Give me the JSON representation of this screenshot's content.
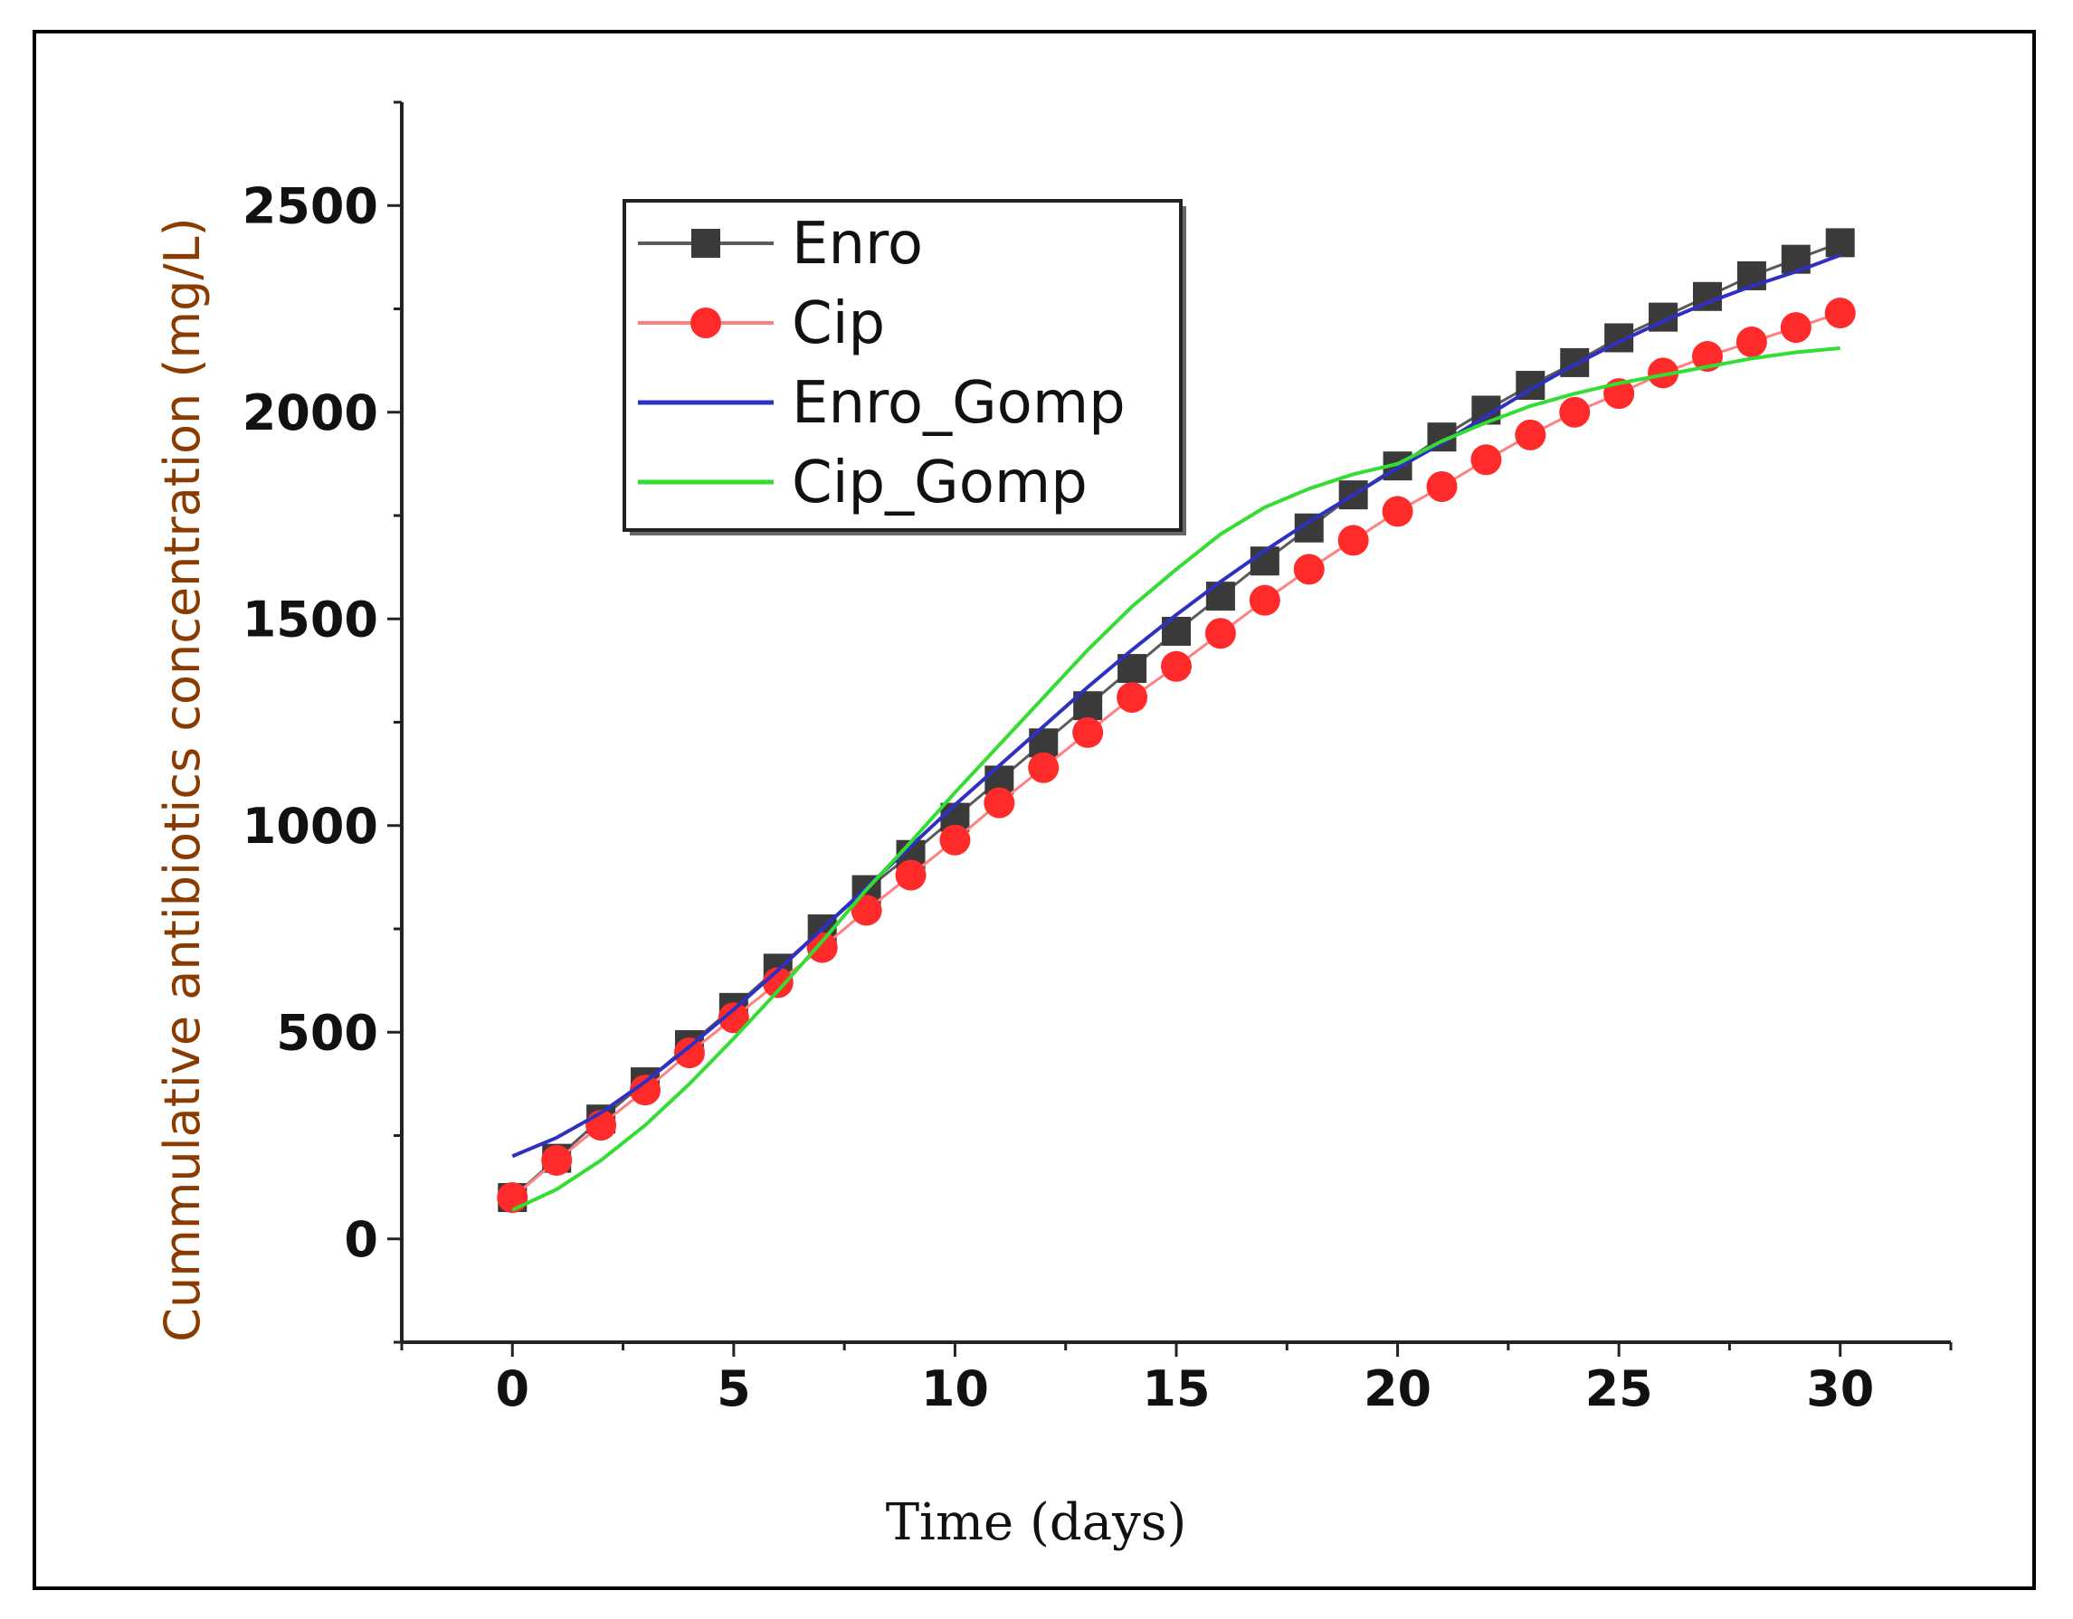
{
  "chart_data": {
    "type": "line",
    "title": "",
    "xlabel": "Time (days)",
    "ylabel": "Cummulative antibiotics concentration (mg/L)",
    "xlim": [
      -2.5,
      32.5
    ],
    "ylim": [
      -250,
      2750
    ],
    "x_ticks": [
      0,
      5,
      10,
      15,
      20,
      25,
      30
    ],
    "y_ticks": [
      0,
      500,
      1000,
      1500,
      2000,
      2500
    ],
    "x_tick_labels": [
      "0",
      "5",
      "10",
      "15",
      "20",
      "25",
      "30"
    ],
    "y_tick_labels": [
      "0",
      "500",
      "1000",
      "1500",
      "2000",
      "2500"
    ],
    "legend_position": "top-left",
    "series": [
      {
        "name": "Enro",
        "marker": "square",
        "color": "#3a3a3a",
        "line_color": "#5a5a5a",
        "x": [
          0,
          1,
          2,
          3,
          4,
          5,
          6,
          7,
          8,
          9,
          10,
          11,
          12,
          13,
          14,
          15,
          16,
          17,
          18,
          19,
          20,
          21,
          22,
          23,
          24,
          25,
          26,
          27,
          28,
          29,
          30
        ],
        "values": [
          100,
          195,
          290,
          380,
          470,
          560,
          655,
          750,
          845,
          930,
          1020,
          1110,
          1200,
          1290,
          1380,
          1470,
          1555,
          1640,
          1720,
          1800,
          1870,
          1940,
          2005,
          2065,
          2120,
          2180,
          2230,
          2280,
          2330,
          2370,
          2410
        ]
      },
      {
        "name": "Cip",
        "marker": "circle",
        "color": "#ff2a2a",
        "line_color": "#ff8080",
        "x": [
          0,
          1,
          2,
          3,
          4,
          5,
          6,
          7,
          8,
          9,
          10,
          11,
          12,
          13,
          14,
          15,
          16,
          17,
          18,
          19,
          20,
          21,
          22,
          23,
          24,
          25,
          26,
          27,
          28,
          29,
          30
        ],
        "values": [
          100,
          190,
          275,
          360,
          450,
          535,
          620,
          705,
          795,
          880,
          965,
          1055,
          1140,
          1225,
          1310,
          1385,
          1465,
          1545,
          1620,
          1690,
          1760,
          1820,
          1885,
          1945,
          2000,
          2045,
          2095,
          2135,
          2170,
          2205,
          2240
        ]
      },
      {
        "name": "Enro_Gomp",
        "marker": "none",
        "color": "#3030c0",
        "x": [
          0,
          1,
          2,
          3,
          4,
          5,
          6,
          7,
          8,
          9,
          10,
          11,
          12,
          13,
          14,
          15,
          16,
          17,
          18,
          19,
          20,
          21,
          22,
          23,
          24,
          25,
          26,
          27,
          28,
          29,
          30
        ],
        "values": [
          200,
          245,
          305,
          380,
          465,
          555,
          650,
          750,
          850,
          950,
          1050,
          1145,
          1240,
          1335,
          1425,
          1510,
          1590,
          1665,
          1735,
          1800,
          1865,
          1925,
          1990,
          2055,
          2115,
          2170,
          2220,
          2265,
          2305,
          2340,
          2380
        ]
      },
      {
        "name": "Cip_Gomp",
        "marker": "none",
        "color": "#33dd33",
        "x": [
          0,
          1,
          2,
          3,
          4,
          5,
          6,
          7,
          8,
          9,
          10,
          11,
          12,
          13,
          14,
          15,
          16,
          17,
          18,
          19,
          20,
          21,
          22,
          23,
          24,
          25,
          26,
          27,
          28,
          29,
          30
        ],
        "values": [
          70,
          120,
          190,
          275,
          375,
          485,
          600,
          720,
          845,
          960,
          1080,
          1195,
          1310,
          1425,
          1530,
          1620,
          1705,
          1770,
          1815,
          1850,
          1875,
          1930,
          1975,
          2015,
          2045,
          2070,
          2090,
          2110,
          2130,
          2145,
          2155
        ]
      }
    ]
  }
}
